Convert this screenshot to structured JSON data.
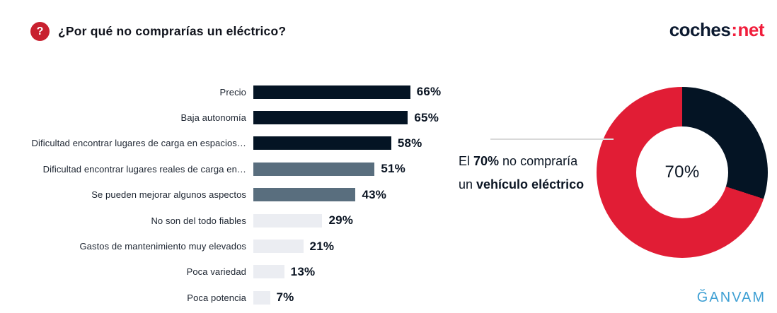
{
  "page": {
    "background": "#ffffff"
  },
  "header": {
    "title": "¿Por qué no comprarías un eléctrico?",
    "help_glyph": "?",
    "brand": {
      "left": "coches",
      "separator": ":",
      "right": "net"
    }
  },
  "colors": {
    "navy": "#041424",
    "slate": "#596e7e",
    "light": "#ebedf2",
    "red": "#e11d35",
    "brand_navy": "#0c1a30",
    "brand_red": "#f11e3c",
    "icon_red": "#c8202f",
    "ganvam_blue": "#3fa0d4",
    "line_gray": "#d9d9d9",
    "text_dark": "#0b1523"
  },
  "chart_data": [
    {
      "type": "bar",
      "orientation": "horizontal",
      "title": "¿Por qué no comprarías un eléctrico?",
      "categories": [
        "Precio",
        "Baja autonomía",
        "Dificultad encontrar lugares de carga en espacios…",
        "Dificultad encontrar lugares reales de carga en…",
        "Se pueden mejorar algunos aspectos",
        "No son del todo fiables",
        "Gastos de mantenimiento muy elevados",
        "Poca variedad",
        "Poca potencia"
      ],
      "values": [
        66,
        65,
        58,
        51,
        43,
        29,
        21,
        13,
        7
      ],
      "value_labels": [
        "66%",
        "65%",
        "58%",
        "51%",
        "43%",
        "29%",
        "21%",
        "13%",
        "7%"
      ],
      "unit": "%",
      "bar_color_keys": [
        "navy",
        "navy",
        "navy",
        "slate",
        "slate",
        "light",
        "light",
        "light",
        "light"
      ],
      "xlim": [
        0,
        100
      ],
      "grid": false,
      "legend": false
    },
    {
      "type": "donut",
      "start_angle_deg": 0,
      "direction": "clockwise",
      "slices": [
        {
          "value": 30,
          "color_key": "navy",
          "label": ""
        },
        {
          "value": 70,
          "color_key": "red",
          "label": "no compraría un vehículo eléctrico"
        }
      ],
      "center_label": "70%",
      "annotation": {
        "line1": [
          {
            "text": "El ",
            "bold": false
          },
          {
            "text": "70%",
            "bold": true
          },
          {
            "text": " no compraría",
            "bold": false
          }
        ],
        "line2": [
          {
            "text": "un ",
            "bold": false
          },
          {
            "text": "vehículo eléctrico",
            "bold": true
          }
        ]
      }
    }
  ],
  "footer": {
    "ganvam_logo": "ĞANVAM"
  }
}
